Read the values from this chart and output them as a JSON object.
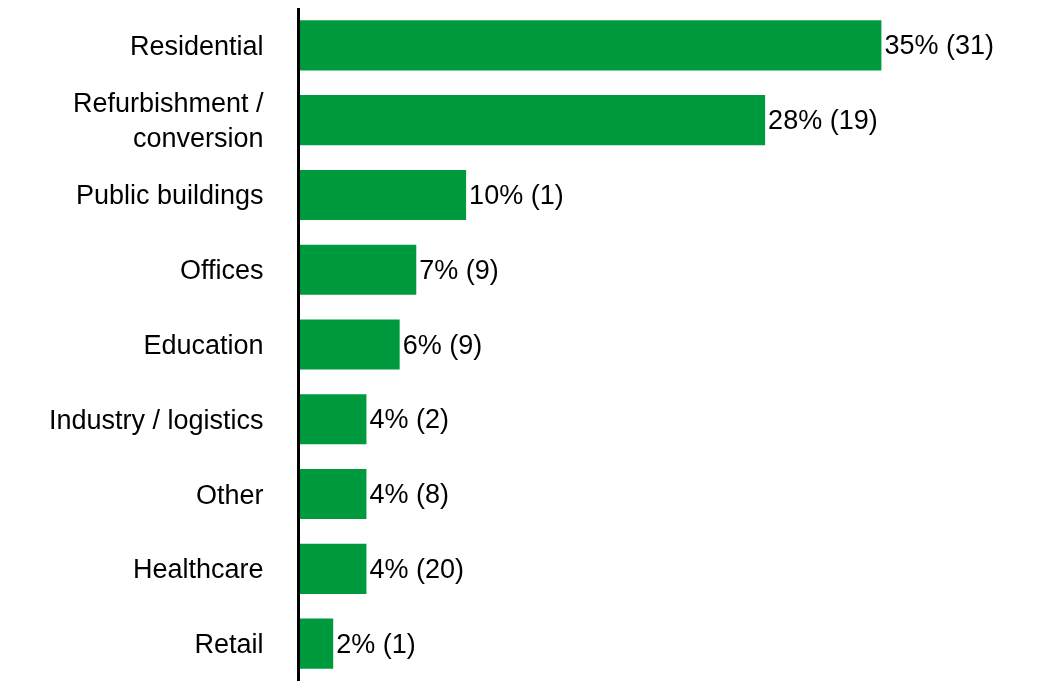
{
  "chart_data": {
    "type": "bar",
    "orientation": "horizontal",
    "categories": [
      "Residential",
      "Refurbishment /\nconversion",
      "Public buildings",
      "Offices",
      "Education",
      "Industry / logistics",
      "Other",
      "Healthcare",
      "Retail"
    ],
    "values": [
      35,
      28,
      10,
      7,
      6,
      4,
      4,
      4,
      2
    ],
    "value_labels": [
      "35% (31)",
      "28% (19)",
      "10% (1)",
      "7% (9)",
      "6% (9)",
      "4% (2)",
      "4% (8)",
      "4% (20)",
      "2% (1)"
    ],
    "color": "#009a3e"
  }
}
